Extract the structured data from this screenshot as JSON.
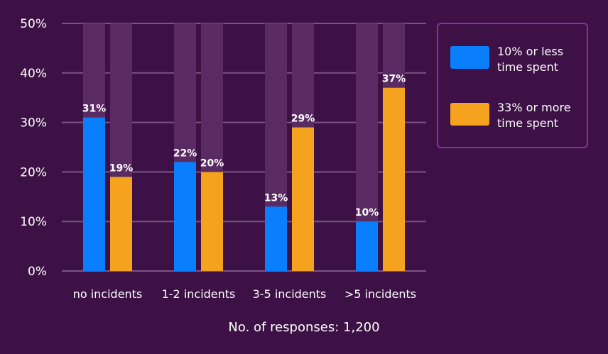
{
  "chart_data": {
    "type": "bar",
    "categories": [
      "no incidents",
      "1-2 incidents",
      "3-5 incidents",
      ">5 incidents"
    ],
    "series": [
      {
        "name": "10% or less time spent",
        "legend_lines": [
          "10% or less",
          "time spent"
        ],
        "color": "#0a7ffd",
        "values": [
          31,
          22,
          13,
          10
        ],
        "labels": [
          "31%",
          "22%",
          "13%",
          "10%"
        ]
      },
      {
        "name": "33% or more time spent",
        "legend_lines": [
          "33% or more",
          "time spent"
        ],
        "color": "#f5a21e",
        "values": [
          19,
          20,
          29,
          37
        ],
        "labels": [
          "19%",
          "20%",
          "29%",
          "37%"
        ]
      }
    ],
    "ylim": [
      0,
      50
    ],
    "yticks": [
      0,
      10,
      20,
      30,
      40,
      50
    ],
    "ytick_labels": [
      "0%",
      "10%",
      "20%",
      "30%",
      "40%",
      "50%"
    ],
    "footer": "No. of responses: 1,200",
    "legend_position": "top-right",
    "grid": true,
    "colors": {
      "background": "#3d1145",
      "track": "#5a2b63",
      "grid": "#7a5485",
      "legend_border": "#8b2fa3"
    }
  }
}
